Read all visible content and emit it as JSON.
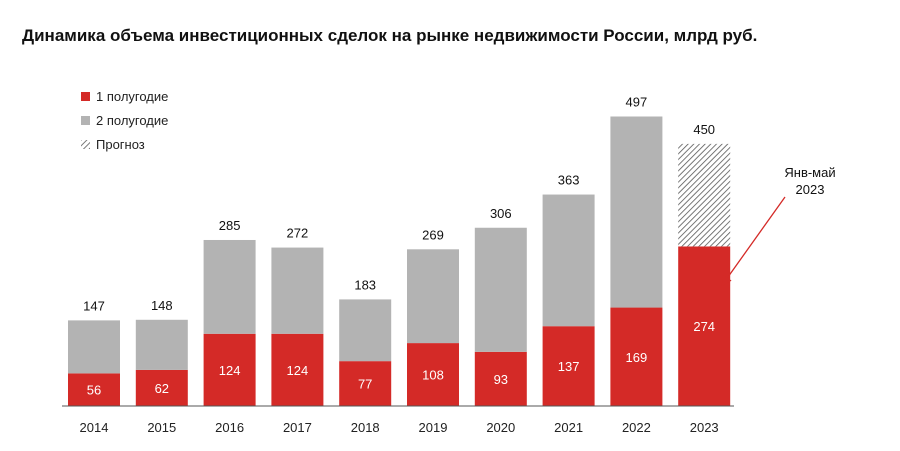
{
  "chart_data": {
    "type": "bar",
    "stacked": true,
    "title": "Динамика объема инвестиционных сделок на рынке недвижимости России, млрд руб.",
    "categories": [
      "2014",
      "2015",
      "2016",
      "2017",
      "2018",
      "2019",
      "2020",
      "2021",
      "2022",
      "2023"
    ],
    "series": [
      {
        "name": "1 полугодие",
        "color": "#d42a27",
        "values": [
          56,
          62,
          124,
          124,
          77,
          108,
          93,
          137,
          169,
          274
        ]
      },
      {
        "name": "2 полугодие",
        "color": "#b3b3b3",
        "values": [
          91,
          86,
          161,
          148,
          106,
          161,
          213,
          226,
          328,
          null
        ]
      },
      {
        "name": "Прогноз",
        "pattern": "hatched",
        "values": [
          null,
          null,
          null,
          null,
          null,
          null,
          null,
          null,
          null,
          176
        ]
      }
    ],
    "totals": [
      147,
      148,
      285,
      272,
      183,
      269,
      306,
      363,
      497,
      450
    ],
    "ylim": [
      0,
      520
    ],
    "grid": false,
    "legend_position": "top-left",
    "annotation": {
      "lines": [
        "Янв-май",
        "2023"
      ],
      "target_category": "2023"
    }
  }
}
